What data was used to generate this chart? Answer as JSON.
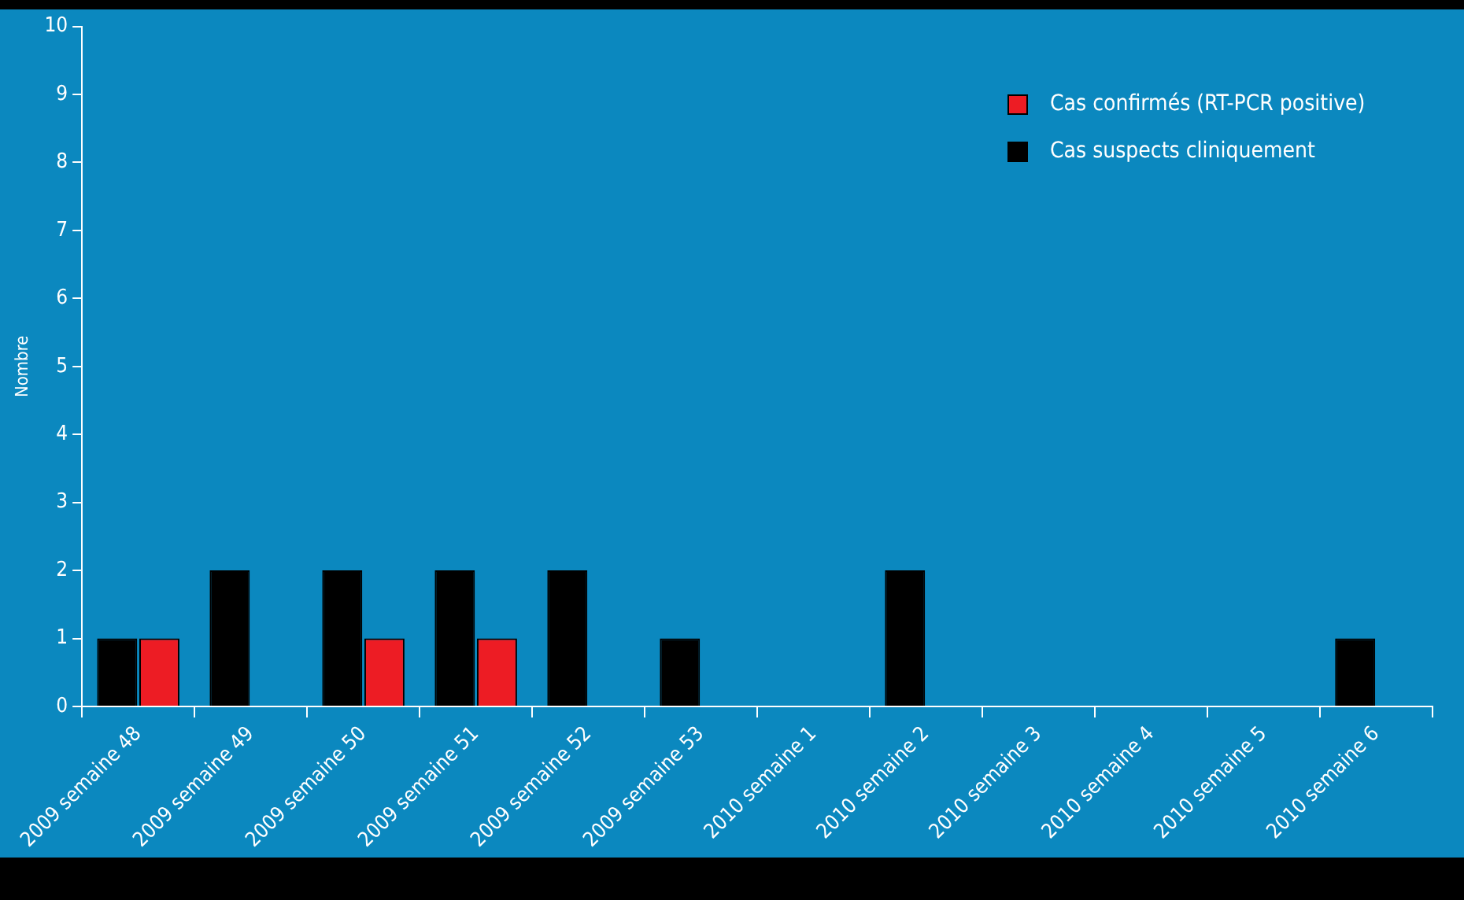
{
  "chart_data": {
    "type": "bar",
    "ylabel": "Nombre",
    "categories": [
      "2009 semaine 48",
      "2009 semaine 49",
      "2009 semaine 50",
      "2009 semaine 51",
      "2009 semaine 52",
      "2009 semaine 53",
      "2010 semaine 1",
      "2010 semaine 2",
      "2010 semaine 3",
      "2010 semaine 4",
      "2010 semaine 5",
      "2010 semaine 6"
    ],
    "series": [
      {
        "name": "Cas suspects cliniquement",
        "color": "#000000",
        "values": [
          1,
          2,
          2,
          2,
          2,
          1,
          0,
          2,
          0,
          0,
          0,
          1
        ]
      },
      {
        "name": "Cas confirmés (RT-PCR positive)",
        "color": "#ed1c24",
        "values": [
          1,
          0,
          1,
          1,
          0,
          0,
          0,
          0,
          0,
          0,
          0,
          0
        ]
      }
    ],
    "ylim": [
      0,
      10
    ],
    "yticks": [
      0,
      1,
      2,
      3,
      4,
      5,
      6,
      7,
      8,
      9,
      10
    ],
    "grid": false,
    "legend": "top right"
  }
}
